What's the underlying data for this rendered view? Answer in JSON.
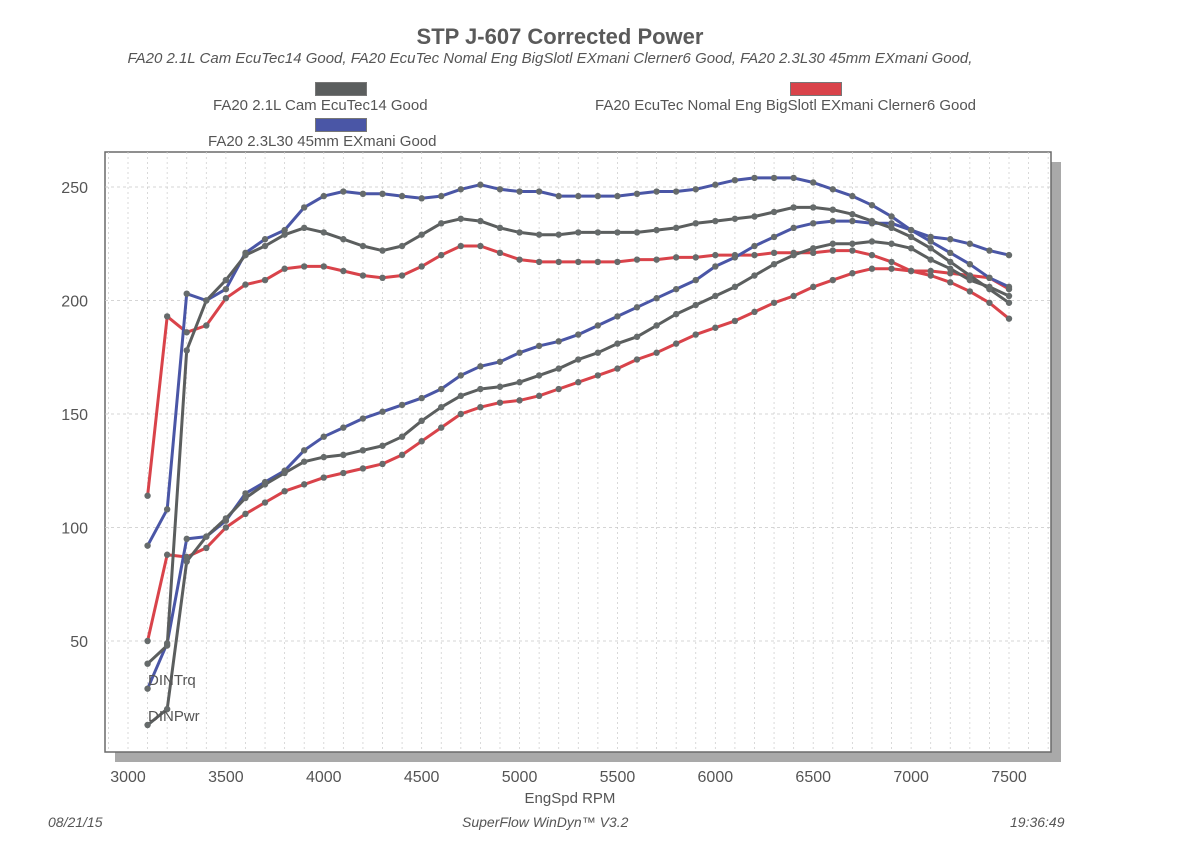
{
  "chart_data": {
    "type": "line",
    "title": "STP J-607 Corrected Power",
    "subtitle": "FA20 2.1L Cam  EcuTec14 Good, FA20 EcuTec Nomal Eng BigSlotl EXmani Clerner6 Good, FA20 2.3L30 45mm EXmani Good,",
    "xlabel": "EngSpd RPM",
    "ylabel": "",
    "xlim": [
      2900,
      7700
    ],
    "ylim": [
      0,
      265
    ],
    "x_ticks": [
      3000,
      3500,
      4000,
      4500,
      5000,
      5500,
      6000,
      6500,
      7000,
      7500
    ],
    "y_ticks": [
      50,
      100,
      150,
      200,
      250
    ],
    "grid": true,
    "legend_position": "top",
    "legend": [
      {
        "name": "FA20 2.1L Cam  EcuTec14 Good",
        "color": "#5b5e5e"
      },
      {
        "name": "FA20 EcuTec Nomal Eng BigSlotl EXmani Clerner6 Good",
        "color": "#d9434a"
      },
      {
        "name": "FA20 2.3L30 45mm EXmani Good",
        "color": "#4a56a6"
      }
    ],
    "annotations": [
      "DINTrq",
      "DINPwr"
    ],
    "x": [
      3100,
      3200,
      3300,
      3400,
      3500,
      3600,
      3700,
      3800,
      3900,
      4000,
      4100,
      4200,
      4300,
      4400,
      4500,
      4600,
      4700,
      4800,
      4900,
      5000,
      5100,
      5200,
      5300,
      5400,
      5500,
      5600,
      5700,
      5800,
      5900,
      6000,
      6100,
      6200,
      6300,
      6400,
      6500,
      6600,
      6700,
      6800,
      6900,
      7000,
      7100,
      7200,
      7300,
      7400,
      7500
    ],
    "series": [
      {
        "name": "FA20 2.1L Cam  EcuTec14 Good - DINTrq",
        "legend_index": 0,
        "metric": "DINTrq",
        "values": [
          40,
          48,
          178,
          200,
          209,
          220,
          224,
          229,
          232,
          230,
          227,
          224,
          222,
          224,
          229,
          234,
          236,
          235,
          232,
          230,
          229,
          229,
          230,
          230,
          230,
          230,
          231,
          232,
          234,
          235,
          236,
          237,
          239,
          241,
          241,
          240,
          238,
          235,
          232,
          228,
          223,
          217,
          211,
          205,
          199
        ]
      },
      {
        "name": "FA20 2.1L Cam  EcuTec14 Good - DINPwr",
        "legend_index": 0,
        "metric": "DINPwr",
        "values": [
          13,
          20,
          85,
          96,
          104,
          113,
          119,
          124,
          129,
          131,
          132,
          134,
          136,
          140,
          147,
          153,
          158,
          161,
          162,
          164,
          167,
          170,
          174,
          177,
          181,
          184,
          189,
          194,
          198,
          202,
          206,
          211,
          216,
          220,
          223,
          225,
          225,
          226,
          225,
          223,
          218,
          214,
          209,
          206,
          202
        ]
      },
      {
        "name": "FA20 EcuTec Nomal Eng BigSlotl EXmani Clerner6 Good - DINTrq",
        "legend_index": 1,
        "metric": "DINTrq",
        "values": [
          114,
          193,
          186,
          189,
          201,
          207,
          209,
          214,
          215,
          215,
          213,
          211,
          210,
          211,
          215,
          220,
          224,
          224,
          221,
          218,
          217,
          217,
          217,
          217,
          217,
          218,
          218,
          219,
          219,
          220,
          220,
          220,
          221,
          221,
          221,
          222,
          222,
          220,
          217,
          213,
          211,
          208,
          204,
          199,
          192
        ]
      },
      {
        "name": "FA20 EcuTec Nomal Eng BigSlotl EXmani Clerner6 Good - DINPwr",
        "legend_index": 1,
        "metric": "DINPwr",
        "values": [
          50,
          88,
          87,
          91,
          100,
          106,
          111,
          116,
          119,
          122,
          124,
          126,
          128,
          132,
          138,
          144,
          150,
          153,
          155,
          156,
          158,
          161,
          164,
          167,
          170,
          174,
          177,
          181,
          185,
          188,
          191,
          195,
          199,
          202,
          206,
          209,
          212,
          214,
          214,
          213,
          213,
          212,
          211,
          210,
          205
        ]
      },
      {
        "name": "FA20 2.3L30 45mm EXmani Good - DINTrq",
        "legend_index": 2,
        "metric": "DINTrq",
        "values": [
          92,
          108,
          203,
          200,
          205,
          221,
          227,
          231,
          241,
          246,
          248,
          247,
          247,
          246,
          245,
          246,
          249,
          251,
          249,
          248,
          248,
          246,
          246,
          246,
          246,
          247,
          248,
          248,
          249,
          251,
          253,
          254,
          254,
          254,
          252,
          249,
          246,
          242,
          237,
          231,
          226,
          221,
          216,
          210,
          206
        ]
      },
      {
        "name": "FA20 2.3L30 45mm EXmani Good - DINPwr",
        "legend_index": 2,
        "metric": "DINPwr",
        "values": [
          29,
          49,
          95,
          96,
          103,
          115,
          120,
          125,
          134,
          140,
          144,
          148,
          151,
          154,
          157,
          161,
          167,
          171,
          173,
          177,
          180,
          182,
          185,
          189,
          193,
          197,
          201,
          205,
          209,
          215,
          219,
          224,
          228,
          232,
          234,
          235,
          235,
          234,
          234,
          231,
          228,
          227,
          225,
          222,
          220
        ]
      }
    ]
  },
  "footer": {
    "date": "08/21/15",
    "software": "SuperFlow WinDyn™ V3.2",
    "time": "19:36:49"
  }
}
